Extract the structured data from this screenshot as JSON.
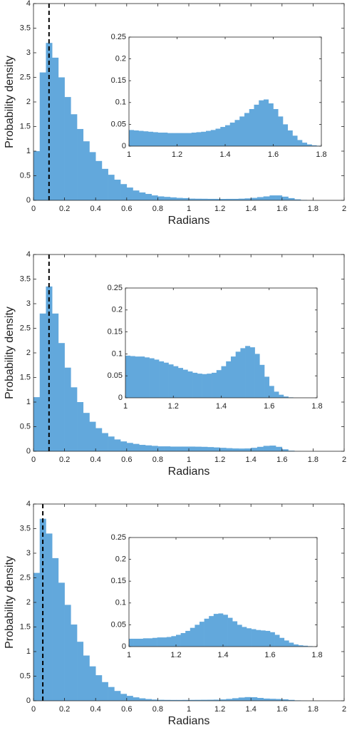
{
  "chart_data": [
    {
      "type": "histogram",
      "xlabel": "Radians",
      "ylabel": "Probability density",
      "color": "#62a8dc",
      "xlim": [
        0,
        2
      ],
      "ylim": [
        0,
        4
      ],
      "xticks": [
        0,
        0.2,
        0.4,
        0.6,
        0.8,
        1,
        1.2,
        1.4,
        1.6,
        1.8,
        2
      ],
      "yticks": [
        0,
        0.5,
        1,
        1.5,
        2,
        2.5,
        3,
        3.5,
        4
      ],
      "reference_line": 0.1,
      "bins": [
        0,
        0.04,
        0.08,
        0.12,
        0.16,
        0.2,
        0.24,
        0.28,
        0.32,
        0.36,
        0.4,
        0.44,
        0.48,
        0.52,
        0.56,
        0.6,
        0.64,
        0.68,
        0.72,
        0.76,
        0.8,
        0.84,
        0.88,
        0.92,
        0.96,
        1,
        1.04,
        1.08,
        1.12,
        1.16,
        1.2,
        1.24,
        1.28,
        1.32,
        1.36,
        1.4,
        1.44,
        1.48,
        1.52,
        1.56,
        1.6,
        1.64,
        1.68,
        1.72,
        1.76,
        1.8
      ],
      "values": [
        1.0,
        2.6,
        3.2,
        2.9,
        2.5,
        2.1,
        1.75,
        1.45,
        1.2,
        0.98,
        0.8,
        0.64,
        0.52,
        0.42,
        0.33,
        0.26,
        0.2,
        0.16,
        0.13,
        0.1,
        0.08,
        0.07,
        0.06,
        0.05,
        0.045,
        0.035,
        0.033,
        0.032,
        0.03,
        0.03,
        0.029,
        0.03,
        0.03,
        0.034,
        0.04,
        0.05,
        0.065,
        0.08,
        0.1,
        0.1,
        0.075,
        0.045,
        0.02,
        0.008,
        0.002
      ],
      "inset": {
        "type": "histogram",
        "color": "#62a8dc",
        "xlim": [
          1,
          1.8
        ],
        "ylim": [
          0,
          0.25
        ],
        "xticks": [
          1,
          1.2,
          1.4,
          1.6,
          1.8
        ],
        "yticks": [
          0,
          0.05,
          0.1,
          0.15,
          0.2,
          0.25
        ],
        "bins": [
          1,
          1.02,
          1.04,
          1.06,
          1.08,
          1.1,
          1.12,
          1.14,
          1.16,
          1.18,
          1.2,
          1.22,
          1.24,
          1.26,
          1.28,
          1.3,
          1.32,
          1.34,
          1.36,
          1.38,
          1.4,
          1.42,
          1.44,
          1.46,
          1.48,
          1.5,
          1.52,
          1.54,
          1.56,
          1.58,
          1.6,
          1.62,
          1.64,
          1.66,
          1.68,
          1.7,
          1.72,
          1.74,
          1.76,
          1.78,
          1.8
        ],
        "values": [
          0.037,
          0.036,
          0.035,
          0.034,
          0.033,
          0.032,
          0.031,
          0.031,
          0.03,
          0.03,
          0.03,
          0.03,
          0.03,
          0.031,
          0.032,
          0.033,
          0.035,
          0.037,
          0.04,
          0.044,
          0.048,
          0.054,
          0.06,
          0.068,
          0.076,
          0.085,
          0.095,
          0.105,
          0.107,
          0.098,
          0.085,
          0.068,
          0.05,
          0.036,
          0.024,
          0.014,
          0.008,
          0.004,
          0.002,
          0.001
        ]
      }
    },
    {
      "type": "histogram",
      "xlabel": "Radians",
      "ylabel": "Probability density",
      "color": "#62a8dc",
      "xlim": [
        0,
        2
      ],
      "ylim": [
        0,
        4
      ],
      "xticks": [
        0,
        0.2,
        0.4,
        0.6,
        0.8,
        1,
        1.2,
        1.4,
        1.6,
        1.8,
        2
      ],
      "yticks": [
        0,
        0.5,
        1,
        1.5,
        2,
        2.5,
        3,
        3.5,
        4
      ],
      "reference_line": 0.1,
      "bins": [
        0,
        0.04,
        0.08,
        0.12,
        0.16,
        0.2,
        0.24,
        0.28,
        0.32,
        0.36,
        0.4,
        0.44,
        0.48,
        0.52,
        0.56,
        0.6,
        0.64,
        0.68,
        0.72,
        0.76,
        0.8,
        0.84,
        0.88,
        0.92,
        0.96,
        1,
        1.04,
        1.08,
        1.12,
        1.16,
        1.2,
        1.24,
        1.28,
        1.32,
        1.36,
        1.4,
        1.44,
        1.48,
        1.52,
        1.56,
        1.6,
        1.64,
        1.68,
        1.72,
        1.76,
        1.8
      ],
      "values": [
        1.1,
        2.8,
        3.35,
        2.8,
        2.2,
        1.7,
        1.3,
        1.0,
        0.78,
        0.6,
        0.47,
        0.37,
        0.3,
        0.24,
        0.2,
        0.17,
        0.15,
        0.13,
        0.12,
        0.11,
        0.1,
        0.1,
        0.095,
        0.095,
        0.095,
        0.095,
        0.093,
        0.09,
        0.085,
        0.078,
        0.07,
        0.063,
        0.057,
        0.055,
        0.057,
        0.07,
        0.09,
        0.11,
        0.115,
        0.09,
        0.04,
        0.012,
        0.003,
        0.001,
        0
      ],
      "inset": {
        "type": "histogram",
        "color": "#62a8dc",
        "xlim": [
          1,
          1.8
        ],
        "ylim": [
          0,
          0.25
        ],
        "xticks": [
          1,
          1.2,
          1.4,
          1.6,
          1.8
        ],
        "yticks": [
          0,
          0.05,
          0.1,
          0.15,
          0.2,
          0.25
        ],
        "bins": [
          1,
          1.02,
          1.04,
          1.06,
          1.08,
          1.1,
          1.12,
          1.14,
          1.16,
          1.18,
          1.2,
          1.22,
          1.24,
          1.26,
          1.28,
          1.3,
          1.32,
          1.34,
          1.36,
          1.38,
          1.4,
          1.42,
          1.44,
          1.46,
          1.48,
          1.5,
          1.52,
          1.54,
          1.56,
          1.58,
          1.6,
          1.62,
          1.64,
          1.66,
          1.68,
          1.7,
          1.72,
          1.74,
          1.76,
          1.78,
          1.8
        ],
        "values": [
          0.096,
          0.095,
          0.094,
          0.094,
          0.092,
          0.09,
          0.087,
          0.083,
          0.08,
          0.076,
          0.072,
          0.068,
          0.064,
          0.06,
          0.057,
          0.055,
          0.054,
          0.055,
          0.057,
          0.063,
          0.072,
          0.083,
          0.094,
          0.105,
          0.113,
          0.118,
          0.115,
          0.1,
          0.075,
          0.048,
          0.027,
          0.014,
          0.007,
          0.003,
          0.001,
          0,
          0,
          0,
          0,
          0
        ]
      }
    },
    {
      "type": "histogram",
      "xlabel": "Radians",
      "ylabel": "Probability density",
      "color": "#62a8dc",
      "xlim": [
        0,
        2
      ],
      "ylim": [
        0,
        4
      ],
      "xticks": [
        0,
        0.2,
        0.4,
        0.6,
        0.8,
        1,
        1.2,
        1.4,
        1.6,
        1.8,
        2
      ],
      "yticks": [
        0,
        0.5,
        1,
        1.5,
        2,
        2.5,
        3,
        3.5,
        4
      ],
      "reference_line": 0.06,
      "bins": [
        0,
        0.04,
        0.08,
        0.12,
        0.16,
        0.2,
        0.24,
        0.28,
        0.32,
        0.36,
        0.4,
        0.44,
        0.48,
        0.52,
        0.56,
        0.6,
        0.64,
        0.68,
        0.72,
        0.76,
        0.8,
        0.84,
        0.88,
        0.92,
        0.96,
        1,
        1.04,
        1.08,
        1.12,
        1.16,
        1.2,
        1.24,
        1.28,
        1.32,
        1.36,
        1.4,
        1.44,
        1.48,
        1.52,
        1.56,
        1.6,
        1.64,
        1.68,
        1.72,
        1.76,
        1.8
      ],
      "values": [
        2.6,
        3.7,
        3.4,
        2.9,
        2.4,
        1.95,
        1.55,
        1.2,
        0.92,
        0.7,
        0.52,
        0.38,
        0.28,
        0.2,
        0.14,
        0.1,
        0.07,
        0.05,
        0.035,
        0.025,
        0.02,
        0.018,
        0.017,
        0.017,
        0.018,
        0.018,
        0.019,
        0.02,
        0.021,
        0.023,
        0.028,
        0.038,
        0.052,
        0.066,
        0.075,
        0.072,
        0.058,
        0.045,
        0.04,
        0.036,
        0.03,
        0.018,
        0.008,
        0.003,
        0.001
      ],
      "inset": {
        "type": "histogram",
        "color": "#62a8dc",
        "xlim": [
          1,
          1.8
        ],
        "ylim": [
          0,
          0.25
        ],
        "xticks": [
          1,
          1.2,
          1.4,
          1.6,
          1.8
        ],
        "yticks": [
          0,
          0.05,
          0.1,
          0.15,
          0.2,
          0.25
        ],
        "bins": [
          1,
          1.02,
          1.04,
          1.06,
          1.08,
          1.1,
          1.12,
          1.14,
          1.16,
          1.18,
          1.2,
          1.22,
          1.24,
          1.26,
          1.28,
          1.3,
          1.32,
          1.34,
          1.36,
          1.38,
          1.4,
          1.42,
          1.44,
          1.46,
          1.48,
          1.5,
          1.52,
          1.54,
          1.56,
          1.58,
          1.6,
          1.62,
          1.64,
          1.66,
          1.68,
          1.7,
          1.72,
          1.74,
          1.76,
          1.78,
          1.8
        ],
        "values": [
          0.018,
          0.018,
          0.018,
          0.019,
          0.019,
          0.02,
          0.021,
          0.021,
          0.022,
          0.024,
          0.027,
          0.031,
          0.036,
          0.043,
          0.05,
          0.057,
          0.064,
          0.07,
          0.075,
          0.076,
          0.073,
          0.066,
          0.058,
          0.05,
          0.045,
          0.042,
          0.04,
          0.038,
          0.037,
          0.036,
          0.033,
          0.027,
          0.02,
          0.014,
          0.009,
          0.005,
          0.003,
          0.002,
          0.001,
          0
        ]
      }
    }
  ]
}
